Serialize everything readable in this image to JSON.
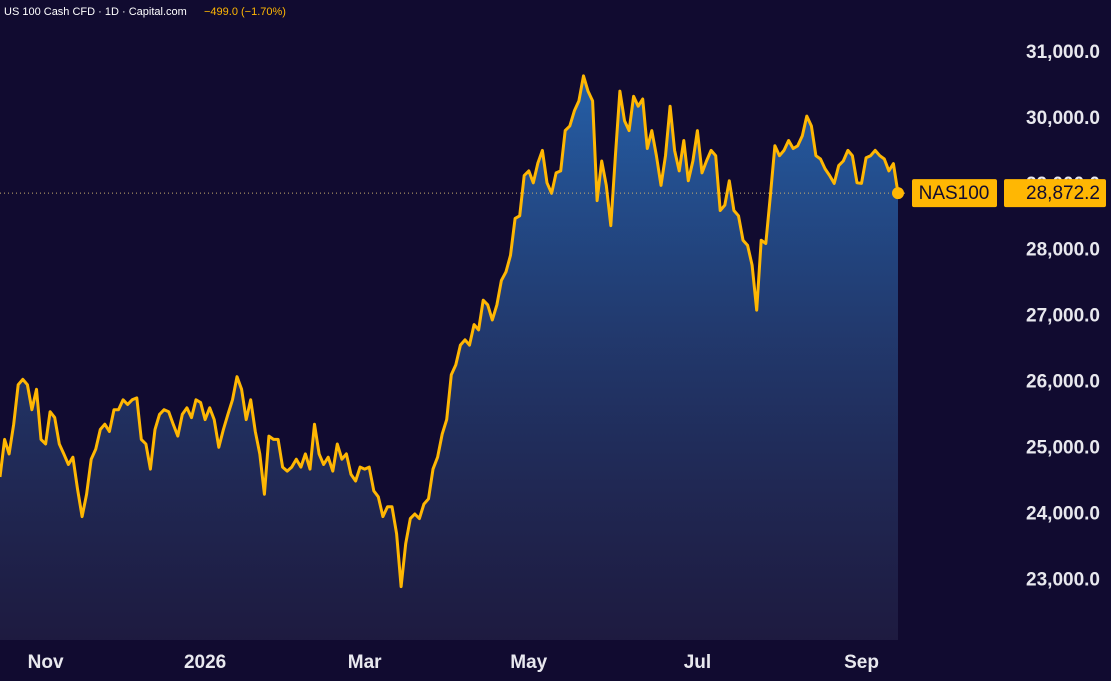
{
  "chart_data": {
    "type": "area",
    "title": "US 100 Cash CFD · 1D · Capital.com",
    "subtitle": "−499.0 (−1.70%)",
    "series": [
      {
        "name": "NAS100",
        "color": "#ffb703",
        "values": [
          24570,
          25140,
          24920,
          25370,
          25970,
          26050,
          25970,
          25590,
          25900,
          25140,
          25070,
          25560,
          25470,
          25070,
          24920,
          24760,
          24870,
          24390,
          23970,
          24310,
          24840,
          24990,
          25290,
          25370,
          25260,
          25590,
          25590,
          25740,
          25670,
          25740,
          25770,
          25140,
          25070,
          24690,
          25290,
          25520,
          25590,
          25560,
          25370,
          25190,
          25520,
          25620,
          25470,
          25740,
          25700,
          25440,
          25620,
          25440,
          25020,
          25290,
          25520,
          25740,
          26090,
          25900,
          25440,
          25740,
          25260,
          24920,
          24310,
          25190,
          25140,
          25140,
          24720,
          24660,
          24720,
          24840,
          24720,
          24920,
          24690,
          25370,
          24920,
          24760,
          24870,
          24660,
          25070,
          24840,
          24920,
          24610,
          24510,
          24720,
          24690,
          24720,
          24360,
          24270,
          23970,
          24120,
          24120,
          23710,
          22910,
          23560,
          23940,
          24010,
          23940,
          24160,
          24240,
          24690,
          24870,
          25220,
          25440,
          26120,
          26270,
          26570,
          26650,
          26570,
          26880,
          26800,
          27250,
          27180,
          26950,
          27180,
          27550,
          27680,
          27930,
          28490,
          28530,
          29140,
          29210,
          29030,
          29330,
          29520,
          29030,
          28870,
          29180,
          29210,
          29820,
          29890,
          30120,
          30270,
          30650,
          30420,
          30270,
          28760,
          29360,
          28990,
          28380,
          29440,
          30420,
          29970,
          29820,
          30340,
          30190,
          30300,
          29550,
          29820,
          29440,
          28990,
          29440,
          30190,
          29520,
          29210,
          29670,
          29060,
          29360,
          29820,
          29180,
          29360,
          29520,
          29440,
          28610,
          28690,
          29060,
          28610,
          28530,
          28160,
          28080,
          27780,
          27100,
          28160,
          28110,
          28840,
          29590,
          29440,
          29520,
          29670,
          29550,
          29590,
          29740,
          30040,
          29890,
          29440,
          29390,
          29240,
          29140,
          29020,
          29290,
          29360,
          29520,
          29440,
          29030,
          29020,
          29410,
          29440,
          29520,
          29440,
          29390,
          29210,
          29320,
          28872.2
        ]
      }
    ],
    "price_label": {
      "value": 28872.2,
      "label": "28,872.2"
    },
    "ylim": [
      22100,
      31800
    ],
    "yticks": [
      {
        "value": 23000,
        "label": "23,000.0"
      },
      {
        "value": 24000,
        "label": "24,000.0"
      },
      {
        "value": 25000,
        "label": "25,000.0"
      },
      {
        "value": 26000,
        "label": "26,000.0"
      },
      {
        "value": 27000,
        "label": "27,000.0"
      },
      {
        "value": 28000,
        "label": "28,000.0"
      },
      {
        "value": 29000,
        "label": "29,000.0"
      },
      {
        "value": 30000,
        "label": "30,000.0"
      },
      {
        "value": 31000,
        "label": "31,000.0"
      }
    ],
    "xticks": [
      {
        "value": 10,
        "label": "Nov"
      },
      {
        "value": 45,
        "label": "2026"
      },
      {
        "value": 80,
        "label": "Mar"
      },
      {
        "value": 116,
        "label": "May"
      },
      {
        "value": 153,
        "label": "Jul"
      },
      {
        "value": 189,
        "label": "Sep"
      }
    ],
    "grid": false
  }
}
